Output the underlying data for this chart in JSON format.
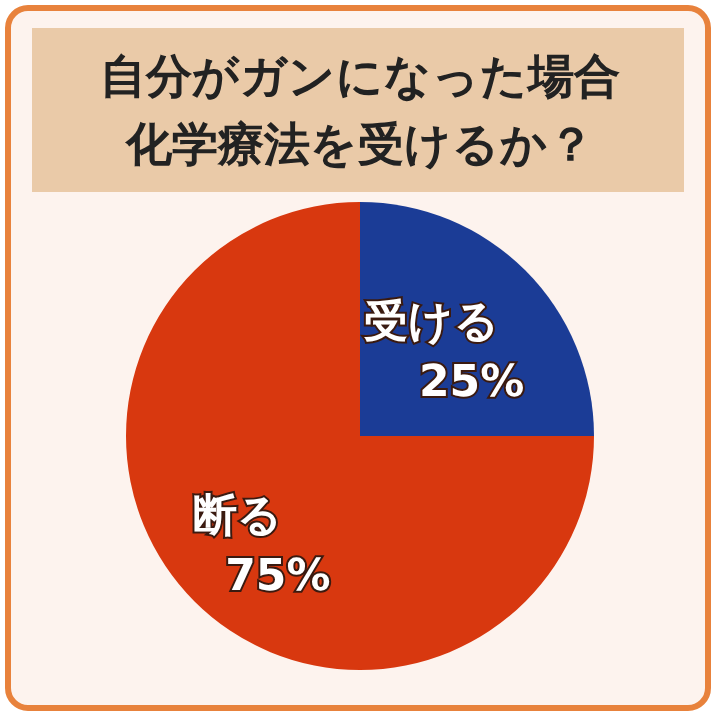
{
  "chart_data": {
    "type": "pie",
    "title": "自分がガンになった場合化学療法を受けるか？",
    "categories": [
      "受ける",
      "断る"
    ],
    "values": [
      25,
      75
    ],
    "colors": [
      "#1b3c96",
      "#d8380f"
    ],
    "value_labels": [
      "25%",
      "75%"
    ]
  }
}
